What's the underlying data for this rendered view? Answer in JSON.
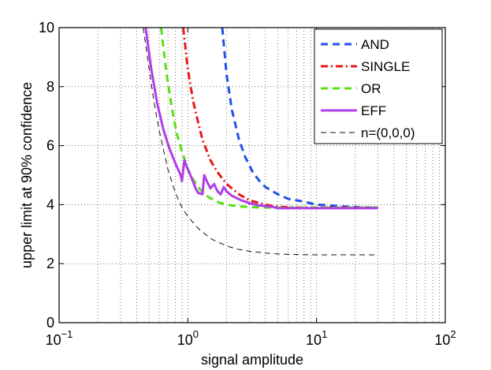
{
  "chart_data": {
    "type": "line",
    "title": "",
    "xlabel": "signal amplitude",
    "ylabel": "upper limit at 90% confidence",
    "xscale": "log",
    "xlim": [
      0.1,
      100
    ],
    "ylim": [
      0,
      10
    ],
    "grid": true,
    "legend_position": "top-right",
    "y_ticks": [
      "0",
      "2",
      "4",
      "6",
      "8",
      "10"
    ],
    "x_ticks": [
      {
        "base": "10",
        "exp": "−1"
      },
      {
        "base": "10",
        "exp": "0"
      },
      {
        "base": "10",
        "exp": "1"
      },
      {
        "base": "10",
        "exp": "2"
      }
    ],
    "series": [
      {
        "name": "AND",
        "color": "#2250e8",
        "style": "dashed",
        "x": [
          1.85,
          2.0,
          2.2,
          2.5,
          2.8,
          3.2,
          3.6,
          4.0,
          5.0,
          6.0,
          8.0,
          10.0,
          13.0,
          16.0,
          20.0,
          25.0,
          30.0
        ],
        "y": [
          10.0,
          8.4,
          7.2,
          6.2,
          5.6,
          5.1,
          4.8,
          4.6,
          4.35,
          4.2,
          4.1,
          4.0,
          3.97,
          3.94,
          3.92,
          3.9,
          3.9
        ]
      },
      {
        "name": "SINGLE",
        "color": "#e81818",
        "style": "dashdot",
        "x": [
          0.92,
          1.0,
          1.1,
          1.2,
          1.3,
          1.5,
          1.7,
          2.0,
          2.5,
          3.0,
          4.0,
          5.0,
          7.0,
          10.0,
          15.0,
          20.0,
          30.0
        ],
        "y": [
          10.0,
          8.6,
          7.5,
          6.8,
          6.2,
          5.5,
          5.1,
          4.7,
          4.35,
          4.15,
          4.0,
          3.93,
          3.9,
          3.9,
          3.9,
          3.9,
          3.9
        ]
      },
      {
        "name": "OR",
        "color": "#55e010",
        "style": "dashed",
        "x": [
          0.62,
          0.68,
          0.75,
          0.82,
          0.9,
          1.0,
          1.1,
          1.25,
          1.4,
          1.6,
          1.8,
          2.0,
          2.4,
          3.0,
          4.0,
          5.0,
          7.0,
          10.0,
          20.0,
          30.0
        ],
        "y": [
          10.0,
          8.5,
          7.3,
          6.4,
          5.8,
          5.2,
          4.85,
          4.5,
          4.3,
          4.15,
          4.05,
          4.0,
          3.95,
          3.92,
          3.9,
          3.9,
          3.9,
          3.9,
          3.9,
          3.9
        ]
      },
      {
        "name": "EFF",
        "color": "#b03ee8",
        "style": "solid",
        "x": [
          0.47,
          0.52,
          0.58,
          0.65,
          0.72,
          0.8,
          0.88,
          0.9,
          0.94,
          1.0,
          1.07,
          1.15,
          1.2,
          1.3,
          1.34,
          1.42,
          1.5,
          1.6,
          1.7,
          1.8,
          1.9,
          2.0,
          2.2,
          2.6,
          3.0,
          3.5,
          4.0,
          4.6,
          5.0,
          7.0,
          10.0,
          15.0,
          20.0,
          30.0
        ],
        "y": [
          10.0,
          8.6,
          7.4,
          6.5,
          5.9,
          5.4,
          5.0,
          4.8,
          5.5,
          5.2,
          4.9,
          4.55,
          4.4,
          4.35,
          5.0,
          4.75,
          4.55,
          4.7,
          4.45,
          4.35,
          4.6,
          4.45,
          4.3,
          4.15,
          4.05,
          3.98,
          3.95,
          3.92,
          3.88,
          3.88,
          3.88,
          3.88,
          3.88,
          3.88
        ]
      },
      {
        "name": "n=(0,0,0)",
        "color": "#111111",
        "style": "thin-dashed",
        "x": [
          0.45,
          0.5,
          0.55,
          0.6,
          0.7,
          0.8,
          0.9,
          1.0,
          1.2,
          1.5,
          2.0,
          2.5,
          3.0,
          4.0,
          5.0,
          7.0,
          10.0,
          20.0,
          30.0
        ],
        "y": [
          10.0,
          8.6,
          7.4,
          6.5,
          5.2,
          4.4,
          3.9,
          3.6,
          3.2,
          2.85,
          2.6,
          2.48,
          2.42,
          2.36,
          2.33,
          2.31,
          2.3,
          2.3,
          2.3
        ]
      }
    ]
  }
}
